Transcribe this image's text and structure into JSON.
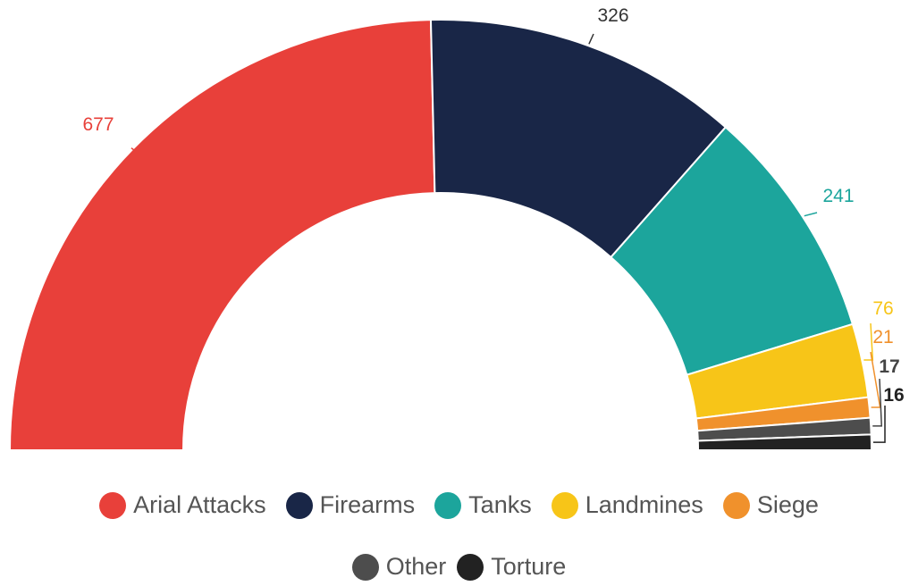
{
  "chart_data": {
    "type": "pie",
    "subtype": "semi-donut",
    "series": [
      {
        "name": "",
        "slices": [
          {
            "label": "Arial Attacks",
            "value": 677,
            "value_label": "677",
            "color": "#E8403A"
          },
          {
            "label": "Firearms",
            "value": 326,
            "value_label": "326",
            "color": "#192647"
          },
          {
            "label": "Tanks",
            "value": 241,
            "value_label": "241",
            "color": "#1CA59C"
          },
          {
            "label": "Landmines",
            "value": 76,
            "value_label": "76",
            "color": "#F7C518"
          },
          {
            "label": "Siege",
            "value": 21,
            "value_label": "21",
            "color": "#F0912C"
          },
          {
            "label": "Other",
            "value": 17,
            "value_label": "17",
            "color": "#4D4D4D"
          },
          {
            "label": "Torture",
            "value": 16,
            "value_label": "16",
            "color": "#222222"
          }
        ]
      }
    ],
    "legend": {
      "position": "bottom",
      "row1": [
        "Arial Attacks",
        "Firearms",
        "Tanks",
        "Landmines",
        "Siege"
      ],
      "row2": [
        "Other",
        "Torture"
      ]
    },
    "data_label_colors": {
      "Arial Attacks": "#E8403A",
      "Firearms": "#333333",
      "Tanks": "#1CA59C",
      "Landmines": "#F7C518",
      "Siege": "#F0912C",
      "Other": "#444444",
      "Torture": "#222222"
    }
  }
}
